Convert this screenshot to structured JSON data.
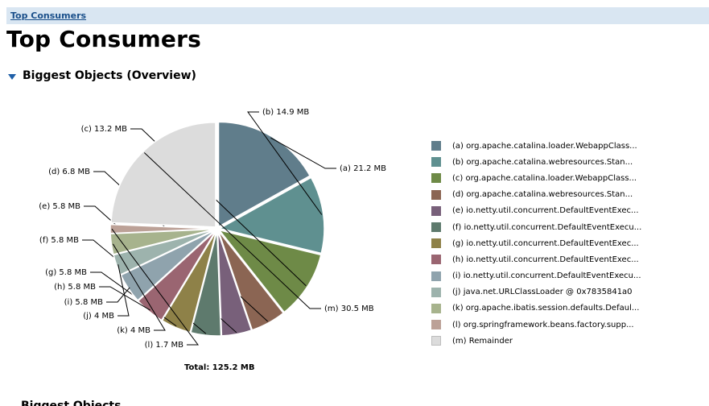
{
  "breadcrumb": {
    "label": "Top Consumers"
  },
  "page": {
    "title": "Top Consumers"
  },
  "section": {
    "title": "Biggest Objects (Overview)"
  },
  "next_section": {
    "title": "Biggest Objects"
  },
  "chart_data": {
    "type": "pie",
    "unit": "MB",
    "total_label": "Total: 125.2 MB",
    "slices": [
      {
        "key": "(a)",
        "value": 21.2,
        "label": "(a)  21.2 MB",
        "name": "org.apache.catalina.loader.WebappClass...",
        "color": "#607d8b"
      },
      {
        "key": "(b)",
        "value": 14.9,
        "label": "(b)  14.9 MB",
        "name": "org.apache.catalina.webresources.Stan...",
        "color": "#5f9090"
      },
      {
        "key": "(c)",
        "value": 13.2,
        "label": "(c)  13.2 MB",
        "name": "org.apache.catalina.loader.WebappClass...",
        "color": "#6e8a47"
      },
      {
        "key": "(d)",
        "value": 6.8,
        "label": "(d)  6.8 MB",
        "name": "org.apache.catalina.webresources.Stan...",
        "color": "#8b6553"
      },
      {
        "key": "(e)",
        "value": 5.8,
        "label": "(e)  5.8 MB",
        "name": "io.netty.util.concurrent.DefaultEventExec...",
        "color": "#78607a"
      },
      {
        "key": "(f)",
        "value": 5.8,
        "label": "(f)  5.8 MB",
        "name": "io.netty.util.concurrent.DefaultEventExecu...",
        "color": "#5e7a6d"
      },
      {
        "key": "(g)",
        "value": 5.8,
        "label": "(g)  5.8 MB",
        "name": "io.netty.util.concurrent.DefaultEventExec...",
        "color": "#8e8148"
      },
      {
        "key": "(h)",
        "value": 5.8,
        "label": "(h)  5.8 MB",
        "name": "io.netty.util.concurrent.DefaultEventExec...",
        "color": "#9a6571"
      },
      {
        "key": "(i)",
        "value": 5.8,
        "label": "(i)  5.8 MB",
        "name": "io.netty.util.concurrent.DefaultEventExecu...",
        "color": "#8fa3ad"
      },
      {
        "key": "(j)",
        "value": 4.0,
        "label": "(j)  4 MB",
        "name": "java.net.URLClassLoader @ 0x7835841a0",
        "color": "#9db3ad"
      },
      {
        "key": "(k)",
        "value": 4.0,
        "label": "(k)  4 MB",
        "name": "org.apache.ibatis.session.defaults.Defaul...",
        "color": "#a7b38d"
      },
      {
        "key": "(l)",
        "value": 1.7,
        "label": "(l)  1.7 MB",
        "name": "org.springframework.beans.factory.supp...",
        "color": "#bca197"
      },
      {
        "key": "(m)",
        "value": 30.5,
        "label": "(m)  30.5 MB",
        "name": "Remainder",
        "color": "#dcdcdc"
      }
    ]
  }
}
